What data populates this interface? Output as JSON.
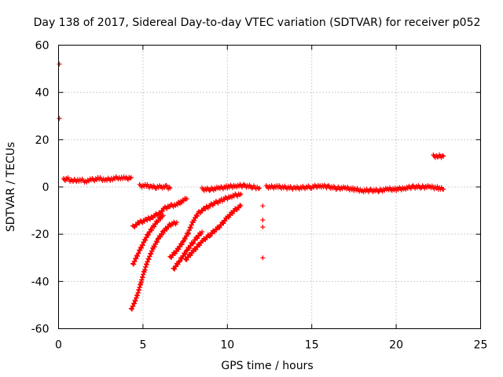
{
  "chart_data": {
    "type": "scatter",
    "title": "Day 138 of 2017, Sidereal Day-to-day VTEC variation (SDTVAR) for receiver p052",
    "xlabel": "GPS time / hours",
    "ylabel": "SDTVAR / TECUs",
    "xlim": [
      0,
      25
    ],
    "ylim": [
      -60,
      60
    ],
    "xticks": [
      0,
      5,
      10,
      15,
      20,
      25
    ],
    "yticks": [
      -60,
      -40,
      -20,
      0,
      20,
      40,
      60
    ],
    "xtick_labels": [
      "0",
      "5",
      "10",
      "15",
      "20",
      "25"
    ],
    "ytick_labels": [
      "-60",
      "-40",
      "-20",
      "0",
      "20",
      "40",
      "60"
    ],
    "grid": true,
    "marker": "+",
    "color": "#ff0000",
    "series": [
      {
        "name": "outliers_start",
        "points": [
          [
            0.05,
            52
          ],
          [
            0.05,
            29
          ]
        ]
      },
      {
        "name": "band_0_4.3",
        "points": [
          [
            0.3,
            3
          ],
          [
            0.5,
            3.5
          ],
          [
            0.8,
            2.5
          ],
          [
            1.2,
            3
          ],
          [
            1.6,
            2.5
          ],
          [
            2.0,
            3
          ],
          [
            2.4,
            3.5
          ],
          [
            2.8,
            3
          ],
          [
            3.2,
            3.5
          ],
          [
            3.6,
            4
          ],
          [
            4.0,
            3.5
          ],
          [
            4.3,
            4
          ]
        ]
      },
      {
        "name": "band_4.8_6.6",
        "points": [
          [
            4.8,
            0.5
          ],
          [
            5.2,
            0.5
          ],
          [
            5.5,
            0
          ],
          [
            5.8,
            0
          ],
          [
            6.1,
            0
          ],
          [
            6.4,
            0
          ],
          [
            6.6,
            -0.5
          ]
        ]
      },
      {
        "name": "band_8.5_12",
        "points": [
          [
            8.5,
            -1
          ],
          [
            9.0,
            -1
          ],
          [
            9.5,
            -0.5
          ],
          [
            10.0,
            0
          ],
          [
            10.5,
            0.5
          ],
          [
            11.0,
            0.5
          ],
          [
            11.5,
            0
          ],
          [
            11.9,
            -0.5
          ]
        ]
      },
      {
        "name": "band_12_23",
        "points": [
          [
            12.3,
            0
          ],
          [
            13.0,
            0
          ],
          [
            14.0,
            -0.5
          ],
          [
            15.0,
            0
          ],
          [
            15.5,
            0.5
          ],
          [
            16.0,
            0
          ],
          [
            16.5,
            -0.5
          ],
          [
            17.0,
            -0.5
          ],
          [
            17.5,
            -1
          ],
          [
            18.0,
            -1.5
          ],
          [
            18.5,
            -1.5
          ],
          [
            19.0,
            -1.5
          ],
          [
            19.5,
            -1
          ],
          [
            20.0,
            -1
          ],
          [
            20.5,
            -0.5
          ],
          [
            21.0,
            0
          ],
          [
            21.5,
            0
          ],
          [
            22.0,
            0
          ],
          [
            22.5,
            -0.5
          ],
          [
            22.8,
            -1
          ]
        ]
      },
      {
        "name": "cluster_22",
        "points": [
          [
            22.2,
            13
          ],
          [
            22.5,
            13
          ],
          [
            22.8,
            13
          ]
        ]
      },
      {
        "name": "arc_4.4_7.6",
        "points": [
          [
            4.4,
            -17
          ],
          [
            4.8,
            -15
          ],
          [
            5.2,
            -14
          ],
          [
            5.6,
            -12.5
          ],
          [
            6.0,
            -11
          ],
          [
            6.3,
            -9
          ],
          [
            6.6,
            -8
          ],
          [
            7.0,
            -7.5
          ],
          [
            7.3,
            -6
          ],
          [
            7.6,
            -5
          ]
        ]
      },
      {
        "name": "arc_4.4_6.2",
        "points": [
          [
            4.4,
            -33
          ],
          [
            4.6,
            -30
          ],
          [
            4.8,
            -27
          ],
          [
            5.0,
            -24
          ],
          [
            5.3,
            -20
          ],
          [
            5.6,
            -17
          ],
          [
            5.9,
            -14
          ],
          [
            6.2,
            -12
          ]
        ]
      },
      {
        "name": "arc_4.3_7",
        "points": [
          [
            4.3,
            -52
          ],
          [
            4.5,
            -49
          ],
          [
            4.7,
            -45
          ],
          [
            4.9,
            -40
          ],
          [
            5.1,
            -35
          ],
          [
            5.3,
            -31
          ],
          [
            5.6,
            -26
          ],
          [
            5.9,
            -22
          ],
          [
            6.2,
            -19
          ],
          [
            6.6,
            -16
          ],
          [
            7.0,
            -15
          ]
        ]
      },
      {
        "name": "arc_6.6_10.8",
        "points": [
          [
            6.6,
            -30
          ],
          [
            7.0,
            -27
          ],
          [
            7.4,
            -23
          ],
          [
            7.7,
            -19
          ],
          [
            8.0,
            -14
          ],
          [
            8.3,
            -11
          ],
          [
            8.7,
            -9
          ],
          [
            9.2,
            -7
          ],
          [
            9.7,
            -5.5
          ],
          [
            10.2,
            -4
          ],
          [
            10.8,
            -3
          ]
        ]
      },
      {
        "name": "arc_6.8_8.5",
        "points": [
          [
            6.8,
            -35
          ],
          [
            7.2,
            -31
          ],
          [
            7.6,
            -27
          ],
          [
            8.0,
            -23
          ],
          [
            8.5,
            -19
          ]
        ]
      },
      {
        "name": "arc_7.5_10.8",
        "points": [
          [
            7.5,
            -31
          ],
          [
            8.0,
            -27
          ],
          [
            8.5,
            -23
          ],
          [
            9.0,
            -20
          ],
          [
            9.5,
            -17
          ],
          [
            10.0,
            -13
          ],
          [
            10.4,
            -10
          ],
          [
            10.8,
            -8
          ]
        ]
      },
      {
        "name": "outliers_12",
        "points": [
          [
            12.1,
            -8
          ],
          [
            12.1,
            -14
          ],
          [
            12.1,
            -17
          ],
          [
            12.1,
            -30
          ]
        ]
      }
    ]
  }
}
